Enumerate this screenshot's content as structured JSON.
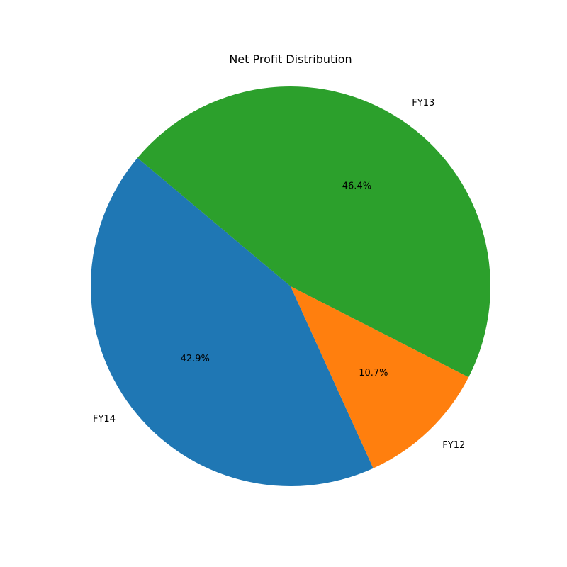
{
  "chart_data": {
    "type": "pie",
    "title": "Net Profit Distribution",
    "start_angle_deg": 140,
    "direction": "counterclockwise",
    "slices": [
      {
        "label": "FY14",
        "value": 42.9,
        "pct_label": "42.9%",
        "color": "#1f77b4"
      },
      {
        "label": "FY12",
        "value": 10.7,
        "pct_label": "10.7%",
        "color": "#ff7f0e"
      },
      {
        "label": "FY13",
        "value": 46.4,
        "pct_label": "46.4%",
        "color": "#2ca02c"
      }
    ],
    "legend": "none"
  }
}
